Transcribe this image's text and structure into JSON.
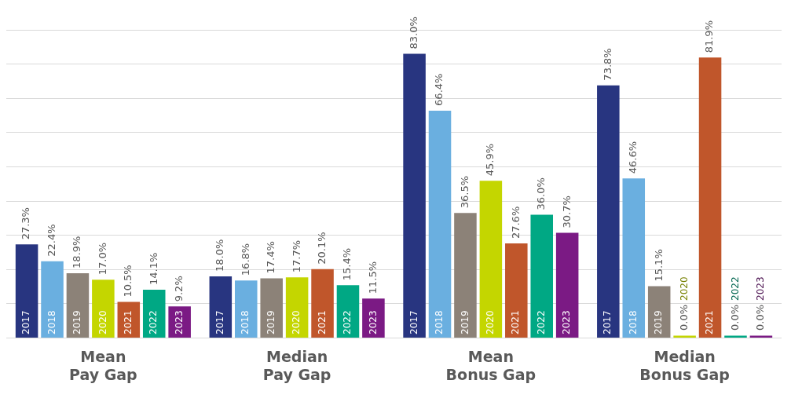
{
  "chart_data": {
    "type": "bar",
    "categories": [
      "Mean Pay Gap",
      "Median Pay Gap",
      "Mean Bonus Gap",
      "Median Bonus Gap"
    ],
    "series": [
      {
        "name": "2017",
        "color": "#283580",
        "values": [
          27.3,
          18.0,
          83.0,
          73.8
        ],
        "value_labels": [
          "27.3%",
          "18.0%",
          "83.0%",
          "73.8%"
        ]
      },
      {
        "name": "2018",
        "color": "#6aafe0",
        "values": [
          22.4,
          16.8,
          66.4,
          46.6
        ],
        "value_labels": [
          "22.4%",
          "16.8%",
          "66.4%",
          "46.6%"
        ]
      },
      {
        "name": "2019",
        "color": "#8c8278",
        "values": [
          18.9,
          17.4,
          36.5,
          15.1
        ],
        "value_labels": [
          "18.9%",
          "17.4%",
          "36.5%",
          "15.1%"
        ]
      },
      {
        "name": "2020",
        "color": "#c4d600",
        "values": [
          17.0,
          17.7,
          45.9,
          0.0
        ],
        "value_labels": [
          "17.0%",
          "17.7%",
          "45.9%",
          "0.0%"
        ]
      },
      {
        "name": "2021",
        "color": "#c0562b",
        "values": [
          10.5,
          20.1,
          27.6,
          81.9
        ],
        "value_labels": [
          "10.5%",
          "20.1%",
          "27.6%",
          "81.9%"
        ]
      },
      {
        "name": "2022",
        "color": "#00a884",
        "values": [
          14.1,
          15.4,
          36.0,
          0.0
        ],
        "value_labels": [
          "14.1%",
          "15.4%",
          "36.0%",
          "0.0%"
        ]
      },
      {
        "name": "2023",
        "color": "#7b1a84",
        "values": [
          9.2,
          11.5,
          30.7,
          0.0
        ],
        "value_labels": [
          "9.2%",
          "11.5%",
          "30.7%",
          "0.0%"
        ]
      }
    ],
    "grid": "y",
    "tick_labels": "x",
    "legend": false
  }
}
